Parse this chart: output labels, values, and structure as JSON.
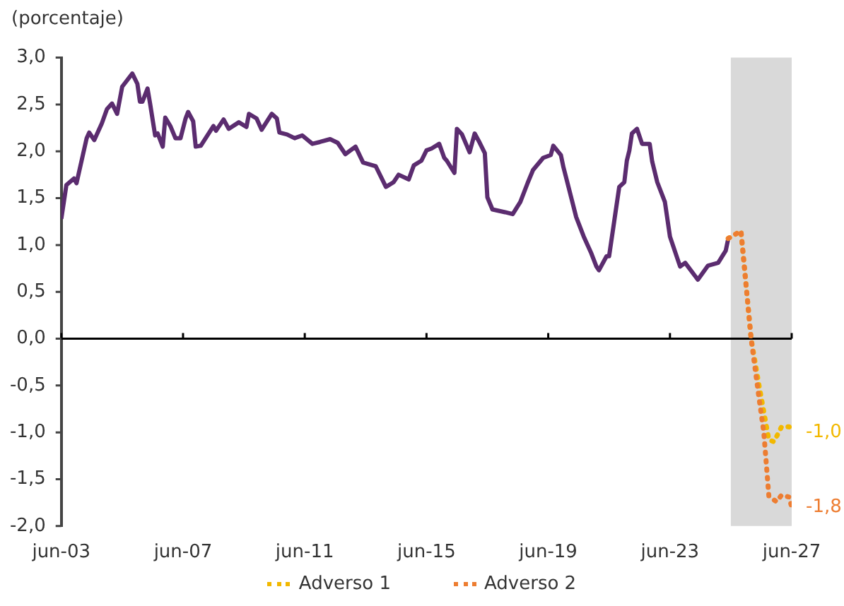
{
  "chart_data": {
    "type": "line",
    "ylabel": "(porcentaje)",
    "xlim": [
      "2003-06",
      "2027-06"
    ],
    "xticks": [
      {
        "value": "2003-06",
        "label": "jun-03"
      },
      {
        "value": "2007-06",
        "label": "jun-07"
      },
      {
        "value": "2011-06",
        "label": "jun-11"
      },
      {
        "value": "2015-06",
        "label": "jun-15"
      },
      {
        "value": "2019-06",
        "label": "jun-19"
      },
      {
        "value": "2023-06",
        "label": "jun-23"
      },
      {
        "value": "2027-06",
        "label": "jun-27"
      }
    ],
    "ylim": [
      -2,
      3
    ],
    "yticks": [
      {
        "value": -2,
        "label": "-2,0"
      },
      {
        "value": -1.5,
        "label": "-1,5"
      },
      {
        "value": -1,
        "label": "-1,0"
      },
      {
        "value": -0.5,
        "label": "-0,5"
      },
      {
        "value": 0,
        "label": "0,0"
      },
      {
        "value": 0.5,
        "label": "0,5"
      },
      {
        "value": 1,
        "label": "1,0"
      },
      {
        "value": 1.5,
        "label": "1,5"
      },
      {
        "value": 2,
        "label": "2,0"
      },
      {
        "value": 2.5,
        "label": "2,5"
      },
      {
        "value": 3,
        "label": "3,0"
      }
    ],
    "legend": "bottom",
    "marker": "none",
    "bands": [
      {
        "axis": "x",
        "from": "2025-06",
        "to": "2027-06",
        "color": "#d9d9d9"
      }
    ],
    "series": [
      {
        "color": "#5b2c6f",
        "line_style": "solid",
        "x": [
          "2003-06",
          "2003-08",
          "2003-11",
          "2003-12",
          "2004-04",
          "2004-05",
          "2004-07",
          "2004-10",
          "2004-12",
          "2005-02",
          "2005-04",
          "2005-06",
          "2005-10",
          "2005-12",
          "2006-01",
          "2006-02",
          "2006-04",
          "2006-05",
          "2006-07",
          "2006-08",
          "2006-10",
          "2006-11",
          "2007-01",
          "2007-03",
          "2007-05",
          "2007-07",
          "2007-08",
          "2007-10",
          "2007-11",
          "2008-01",
          "2008-06",
          "2008-07",
          "2008-10",
          "2008-12",
          "2009-04",
          "2009-07",
          "2009-08",
          "2009-11",
          "2010-01",
          "2010-05",
          "2010-07",
          "2010-08",
          "2010-11",
          "2011-02",
          "2011-05",
          "2011-09",
          "2011-12",
          "2012-04",
          "2012-07",
          "2012-10",
          "2013-02",
          "2013-05",
          "2013-10",
          "2014-02",
          "2014-05",
          "2014-07",
          "2014-11",
          "2015-01",
          "2015-04",
          "2015-06",
          "2015-08",
          "2015-11",
          "2016-01",
          "2016-02",
          "2016-05",
          "2016-06",
          "2016-08",
          "2016-11",
          "2017-01",
          "2017-03",
          "2017-05",
          "2017-06",
          "2017-08",
          "2018-01",
          "2018-04",
          "2018-07",
          "2018-10",
          "2018-12",
          "2019-04",
          "2019-07",
          "2019-08",
          "2019-11",
          "2019-12",
          "2020-02",
          "2020-05",
          "2020-08",
          "2020-11",
          "2021-01",
          "2021-02",
          "2021-05",
          "2021-06",
          "2021-08",
          "2021-10",
          "2021-12",
          "2022-01",
          "2022-02",
          "2022-03",
          "2022-05",
          "2022-07",
          "2022-10",
          "2022-11",
          "2023-01",
          "2023-04",
          "2023-06",
          "2023-10",
          "2023-12",
          "2024-05",
          "2024-09",
          "2025-01",
          "2025-04",
          "2025-05"
        ],
        "values": [
          1.28,
          1.64,
          1.71,
          1.66,
          2.14,
          2.2,
          2.12,
          2.3,
          2.45,
          2.51,
          2.4,
          2.69,
          2.83,
          2.72,
          2.53,
          2.53,
          2.67,
          2.51,
          2.17,
          2.19,
          2.05,
          2.36,
          2.27,
          2.14,
          2.14,
          2.35,
          2.42,
          2.32,
          2.05,
          2.06,
          2.27,
          2.22,
          2.34,
          2.24,
          2.31,
          2.26,
          2.4,
          2.35,
          2.23,
          2.4,
          2.35,
          2.2,
          2.18,
          2.14,
          2.17,
          2.08,
          2.1,
          2.13,
          2.09,
          1.97,
          2.05,
          1.88,
          1.84,
          1.62,
          1.67,
          1.75,
          1.7,
          1.85,
          1.9,
          2.01,
          2.03,
          2.08,
          1.93,
          1.9,
          1.77,
          2.24,
          2.18,
          1.99,
          2.19,
          2.09,
          1.98,
          1.51,
          1.38,
          1.35,
          1.33,
          1.46,
          1.67,
          1.8,
          1.93,
          1.96,
          2.06,
          1.96,
          1.83,
          1.62,
          1.3,
          1.09,
          0.91,
          0.77,
          0.73,
          0.88,
          0.88,
          1.25,
          1.62,
          1.67,
          1.9,
          2.01,
          2.19,
          2.24,
          2.08,
          2.08,
          1.89,
          1.67,
          1.46,
          1.09,
          0.77,
          0.81,
          0.63,
          0.78,
          0.81,
          0.94,
          1.07
        ]
      },
      {
        "name": "Adverso 1",
        "color": "#f2b800",
        "line_style": "dotted",
        "x": [
          "2025-05",
          "2025-10",
          "2026-02",
          "2026-05",
          "2026-09",
          "2026-11",
          "2027-02",
          "2027-05",
          "2027-06"
        ],
        "values": [
          1.07,
          1.15,
          0.0,
          -0.48,
          -1.08,
          -1.1,
          -0.94,
          -0.94,
          -1.0
        ],
        "value_labels": [
          null,
          null,
          null,
          null,
          null,
          null,
          null,
          null,
          "-1,0"
        ]
      },
      {
        "name": "Adverso 2",
        "color": "#ed7d31",
        "line_style": "dotted",
        "x": [
          "2025-05",
          "2025-10",
          "2026-02",
          "2026-05",
          "2026-07",
          "2026-09",
          "2026-12",
          "2027-02",
          "2027-05",
          "2027-06"
        ],
        "values": [
          1.07,
          1.15,
          0.0,
          -0.61,
          -1.0,
          -1.68,
          -1.74,
          -1.67,
          -1.69,
          -1.8
        ],
        "value_labels": [
          null,
          null,
          null,
          null,
          null,
          null,
          null,
          null,
          null,
          "-1,8"
        ]
      }
    ]
  }
}
